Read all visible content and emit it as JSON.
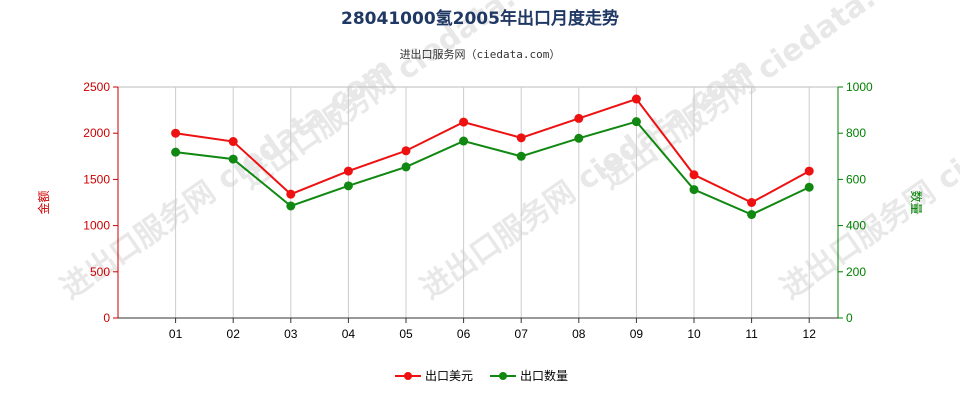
{
  "title": "28041000氢2005年出口月度走势",
  "subtitle": "进出口服务网（ciedata.com）",
  "watermark": "进出口服务网 ciedata.com",
  "colors": {
    "left_axis": "#cc0000",
    "right_axis": "#008000",
    "series1": "#ee1111",
    "series2": "#118811",
    "title": "#1f3864"
  },
  "chart_data": {
    "type": "line",
    "categories": [
      "01",
      "02",
      "03",
      "04",
      "05",
      "06",
      "07",
      "08",
      "09",
      "10",
      "11",
      "12"
    ],
    "y_left": {
      "label": "金额",
      "ylim": [
        0,
        2500
      ],
      "ticks": [
        0,
        500,
        1000,
        1500,
        2000,
        2500
      ]
    },
    "y_right": {
      "label": "数量",
      "ylim": [
        0,
        1000
      ],
      "ticks": [
        0,
        200,
        400,
        600,
        800,
        1000
      ]
    },
    "series": [
      {
        "name": "出口美元",
        "axis": "left",
        "values": [
          2000,
          1910,
          1340,
          1590,
          1810,
          2120,
          1950,
          2160,
          2370,
          1550,
          1250,
          1590
        ]
      },
      {
        "name": "出口数量",
        "axis": "right",
        "values": [
          718,
          688,
          485,
          572,
          654,
          766,
          700,
          778,
          850,
          556,
          448,
          566
        ]
      }
    ],
    "grid": "vertical",
    "legend_position": "bottom-center"
  }
}
